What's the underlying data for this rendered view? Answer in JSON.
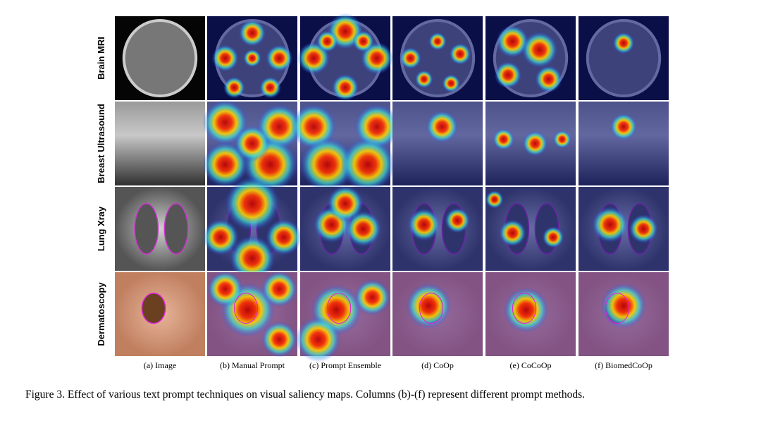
{
  "figure": {
    "row_labels": [
      "Brain MRI",
      "Breast Ultrasound",
      "Lung Xray",
      "Dermatoscopy"
    ],
    "column_labels": [
      "(a) Image",
      "(b) Manual Prompt",
      "(c) Prompt Ensemble",
      "(d) CoOp",
      "(e) CoCoOp",
      "(f) BiomedCoOp"
    ],
    "caption": "Figure 3. Effect of various text prompt techniques on visual saliency maps. Columns (b)-(f) represent different prompt methods."
  }
}
